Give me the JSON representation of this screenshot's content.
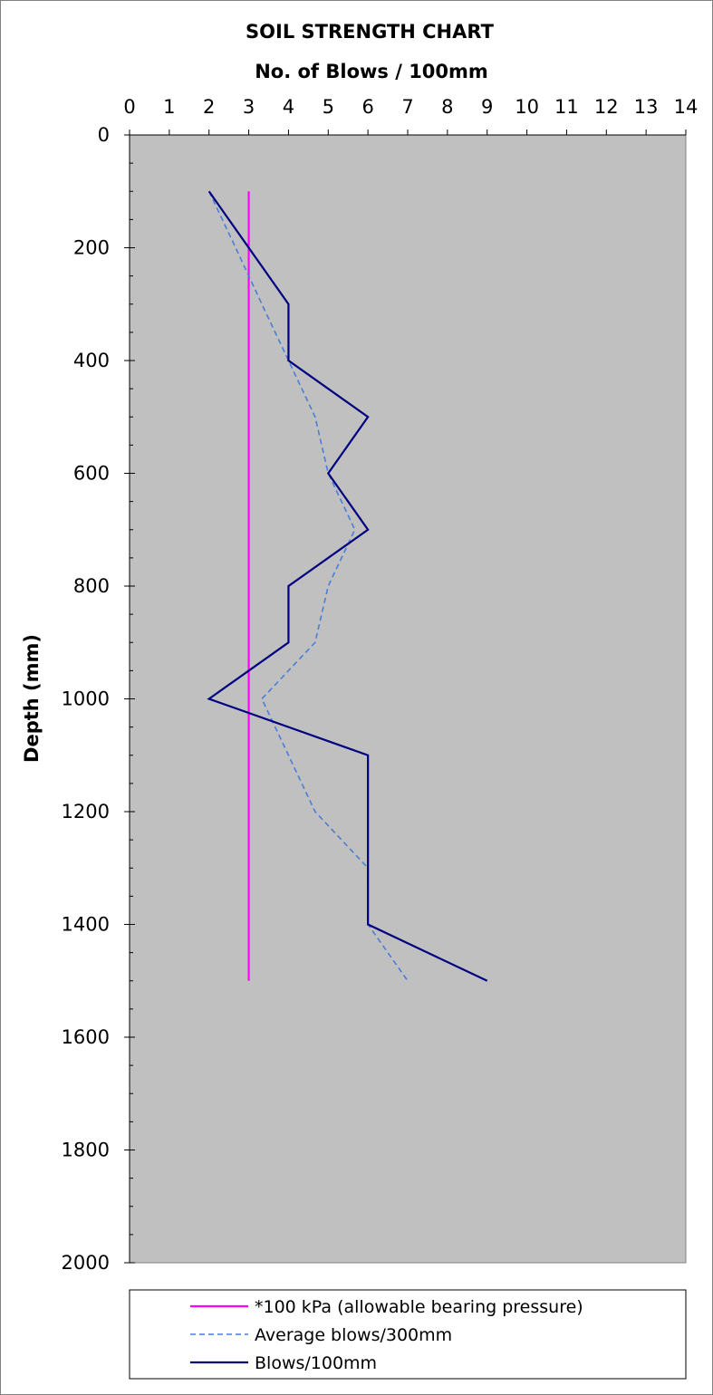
{
  "chart_data": {
    "type": "line",
    "title": "SOIL STRENGTH CHART",
    "xlabel": "No. of Blows / 100mm",
    "ylabel": "Depth (mm)",
    "xlim": [
      0,
      14
    ],
    "ylim": [
      0,
      2000
    ],
    "y_inverted": true,
    "x_axis_position": "top",
    "x_ticks": [
      "0",
      "1",
      "2",
      "3",
      "4",
      "5",
      "6",
      "7",
      "8",
      "9",
      "10",
      "11",
      "12",
      "13",
      "14"
    ],
    "y_ticks": [
      "0",
      "200",
      "400",
      "600",
      "800",
      "1000",
      "1200",
      "1400",
      "1600",
      "1800",
      "2000"
    ],
    "grid": false,
    "plot_background": "#c0c0c0",
    "legend_position": "bottom",
    "series": [
      {
        "name": "*100 kPa (allowable bearing pressure)",
        "color": "#ff00ff",
        "style": "solid",
        "points": [
          [
            3,
            100
          ],
          [
            3,
            1500
          ]
        ]
      },
      {
        "name": "Average blows/300mm",
        "color": "#4a7ed6",
        "style": "dashed",
        "points": [
          [
            2,
            100
          ],
          [
            2.67,
            200
          ],
          [
            3.33,
            300
          ],
          [
            4,
            400
          ],
          [
            4.67,
            500
          ],
          [
            5,
            600
          ],
          [
            5.67,
            700
          ],
          [
            5,
            800
          ],
          [
            4.67,
            900
          ],
          [
            3.33,
            1000
          ],
          [
            4,
            1100
          ],
          [
            4.67,
            1200
          ],
          [
            6,
            1300
          ],
          [
            6,
            1400
          ],
          [
            7,
            1500
          ]
        ]
      },
      {
        "name": "Blows/100mm",
        "color": "#000080",
        "style": "solid",
        "points": [
          [
            2,
            100
          ],
          [
            3,
            200
          ],
          [
            4,
            300
          ],
          [
            4,
            400
          ],
          [
            6,
            500
          ],
          [
            5,
            600
          ],
          [
            6,
            700
          ],
          [
            4,
            800
          ],
          [
            4,
            900
          ],
          [
            2,
            1000
          ],
          [
            6,
            1100
          ],
          [
            6,
            1200
          ],
          [
            6,
            1300
          ],
          [
            6,
            1400
          ],
          [
            9,
            1500
          ]
        ]
      }
    ]
  }
}
